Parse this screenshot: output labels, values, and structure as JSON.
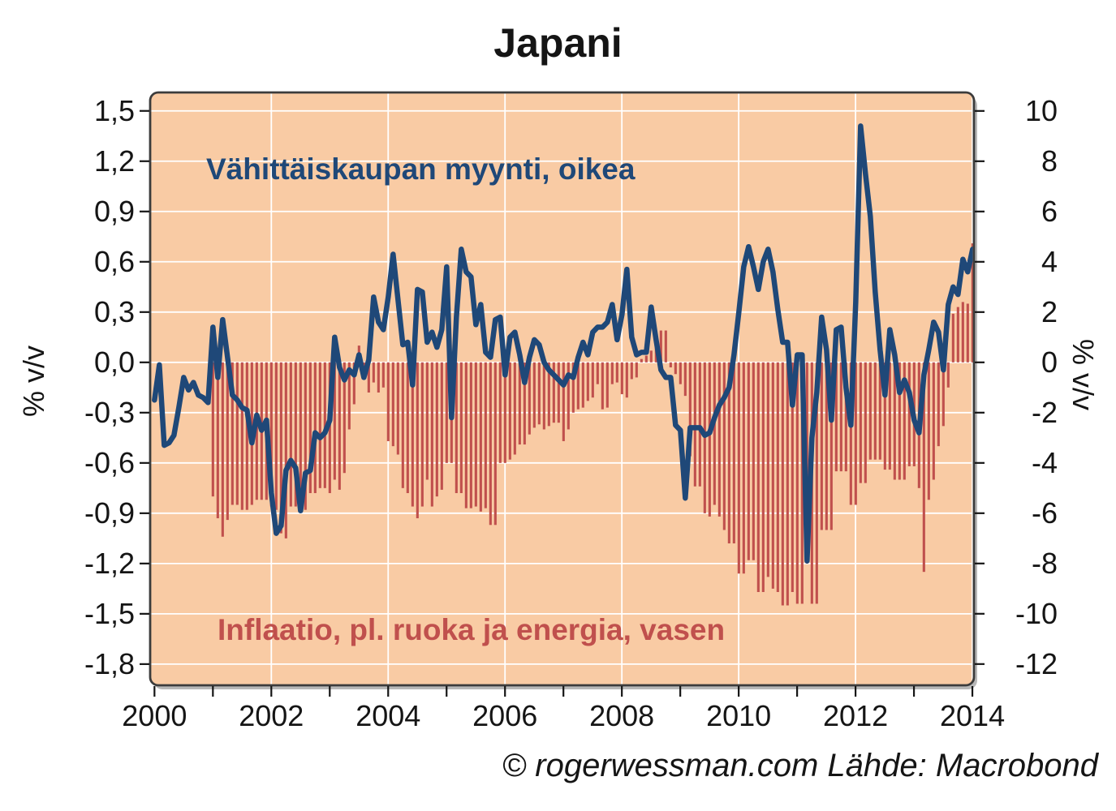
{
  "title": "Japani",
  "footer": "© rogerwessman.com Lähde: Macrobond",
  "annotations": {
    "line_label": "Vähittäiskaupan myynti, oikea",
    "bar_label": "Inflaatio, pl. ruoka ja energia, vasen"
  },
  "axes": {
    "left_unit": "% v/v",
    "right_unit": "% v/v",
    "left_ticks": [
      "1,5",
      "1,2",
      "0,9",
      "0,6",
      "0,3",
      "0,0",
      "-0,3",
      "-0,6",
      "-0,9",
      "-1,2",
      "-1,5",
      "-1,8"
    ],
    "left_tick_values": [
      1.5,
      1.2,
      0.9,
      0.6,
      0.3,
      0.0,
      -0.3,
      -0.6,
      -0.9,
      -1.2,
      -1.5,
      -1.8
    ],
    "right_ticks": [
      "10",
      "8",
      "6",
      "4",
      "2",
      "0",
      "-2",
      "-4",
      "-6",
      "-8",
      "-10",
      "-12"
    ],
    "right_tick_values": [
      10,
      8,
      6,
      4,
      2,
      0,
      -2,
      -4,
      -6,
      -8,
      -10,
      -12
    ],
    "x_ticks": [
      "2000",
      "2002",
      "2004",
      "2006",
      "2008",
      "2010",
      "2012",
      "2014"
    ],
    "x_tick_values": [
      2000,
      2002,
      2004,
      2006,
      2008,
      2010,
      2012,
      2014
    ]
  },
  "colors": {
    "plot_bg": "#F9CBA4",
    "grid": "#FFFFFF",
    "frame": "#3C3C3C",
    "shadow": "rgba(0,0,0,0.28)",
    "bar": "#C0504D",
    "line": "#1F4878",
    "text": "#151515"
  },
  "chart_data": {
    "type": "bar+line",
    "title": "Japani",
    "frequency": "monthly",
    "start_month": "2000-01",
    "end_month": "2014-01",
    "grid": true,
    "x_year_gridlines": [
      2002,
      2004,
      2006,
      2008,
      2010,
      2012,
      2014
    ],
    "left_axis": {
      "label": "% v/v",
      "ylim": [
        -1.8,
        1.5
      ]
    },
    "right_axis": {
      "label": "% v/v",
      "ylim": [
        -12,
        10
      ]
    },
    "series": [
      {
        "name": "Inflaatio, pl. ruoka ja energia, vasen",
        "type": "bar",
        "axis": "left",
        "unit": "% v/v",
        "values": [
          null,
          null,
          null,
          null,
          null,
          null,
          null,
          null,
          null,
          null,
          null,
          null,
          -0.8,
          -0.93,
          -1.04,
          -0.94,
          -0.85,
          -0.85,
          -0.88,
          -0.88,
          -0.85,
          -0.82,
          -0.82,
          -0.82,
          -0.86,
          -0.88,
          -1.02,
          -1.05,
          -0.86,
          -0.86,
          -0.88,
          -0.88,
          -0.78,
          -0.78,
          -0.75,
          -0.75,
          -0.78,
          -0.7,
          -0.76,
          -0.66,
          -0.4,
          -0.25,
          0.1,
          -0.1,
          -0.18,
          -0.12,
          -0.18,
          -0.15,
          -0.47,
          -0.5,
          -0.55,
          -0.75,
          -0.78,
          -0.86,
          -0.93,
          -0.86,
          -0.7,
          -0.86,
          -0.8,
          -0.76,
          -0.6,
          -0.6,
          -0.78,
          -0.78,
          -0.87,
          -0.87,
          -0.86,
          -0.89,
          -0.87,
          -0.97,
          -0.97,
          -0.6,
          -0.6,
          -0.58,
          -0.55,
          -0.49,
          -0.49,
          -0.43,
          -0.39,
          -0.37,
          -0.4,
          -0.38,
          -0.36,
          -0.36,
          -0.47,
          -0.4,
          -0.3,
          -0.28,
          -0.27,
          -0.23,
          -0.21,
          -0.13,
          -0.28,
          -0.27,
          -0.13,
          -0.12,
          -0.19,
          -0.21,
          -0.1,
          -0.09,
          0.02,
          0.04,
          0.07,
          0.11,
          0.19,
          0.19,
          -0.03,
          -0.07,
          -0.13,
          -0.2,
          -0.56,
          -0.74,
          -0.74,
          -0.9,
          -0.92,
          -0.85,
          -0.92,
          -1.0,
          -1.08,
          -1.08,
          -1.26,
          -1.26,
          -1.18,
          -1.18,
          -1.37,
          -1.37,
          -1.28,
          -1.35,
          -1.37,
          -1.45,
          -1.45,
          -1.37,
          -1.44,
          -1.44,
          -1.2,
          -1.44,
          -1.44,
          -1.0,
          -1.0,
          -1.0,
          -0.65,
          -0.65,
          -0.65,
          -0.85,
          -0.85,
          -0.72,
          -0.72,
          -0.58,
          -0.58,
          -0.58,
          -0.64,
          -0.64,
          -0.7,
          -0.7,
          -0.7,
          -0.62,
          -0.62,
          -0.75,
          -1.25,
          -0.82,
          -0.7,
          -0.5,
          -0.38,
          -0.15,
          0.29,
          0.33,
          0.36,
          0.35,
          0.71
        ]
      },
      {
        "name": "Vähittäiskaupan myynti, oikea",
        "type": "line",
        "axis": "right",
        "unit": "% v/v",
        "values": [
          -1.5,
          -0.1,
          -3.3,
          -3.2,
          -2.9,
          -1.8,
          -0.6,
          -1.1,
          -0.8,
          -1.3,
          -1.4,
          -1.6,
          1.4,
          -0.6,
          1.7,
          0.2,
          -1.3,
          -1.5,
          -1.8,
          -1.9,
          -3.2,
          -2.1,
          -2.7,
          -2.3,
          -5.2,
          -6.8,
          -6.5,
          -4.3,
          -3.9,
          -4.2,
          -5.9,
          -4.4,
          -4.3,
          -2.8,
          -3.0,
          -2.8,
          -2.3,
          1.0,
          -0.2,
          -0.7,
          -0.3,
          -0.5,
          0.3,
          -0.6,
          0.1,
          2.6,
          1.6,
          1.3,
          2.6,
          4.3,
          2.5,
          0.7,
          0.8,
          -0.9,
          2.9,
          2.8,
          0.8,
          1.2,
          0.6,
          1.3,
          3.8,
          -2.2,
          1.8,
          4.5,
          3.6,
          3.4,
          1.5,
          2.3,
          0.4,
          0.2,
          1.7,
          1.8,
          -0.5,
          1.0,
          1.2,
          0.3,
          -0.8,
          0.2,
          0.9,
          0.7,
          0.0,
          -0.3,
          -0.5,
          -0.7,
          -0.9,
          -0.5,
          -0.6,
          0.2,
          0.8,
          0.3,
          1.2,
          1.4,
          1.4,
          1.6,
          2.3,
          0.9,
          1.9,
          3.7,
          1.0,
          0.3,
          0.4,
          0.4,
          2.2,
          0.9,
          -0.3,
          -0.6,
          -0.6,
          -2.5,
          -2.7,
          -5.4,
          -2.6,
          -2.6,
          -2.6,
          -2.9,
          -2.8,
          -2.2,
          -1.7,
          -1.4,
          -1.0,
          0.3,
          2.0,
          3.8,
          4.6,
          3.8,
          2.9,
          4.0,
          4.5,
          3.6,
          2.1,
          0.8,
          0.8,
          -1.7,
          0.3,
          0.3,
          -7.9,
          -3.0,
          -1.2,
          1.8,
          0.5,
          -2.3,
          1.3,
          1.4,
          -1.0,
          -2.5,
          2.4,
          9.4,
          7.5,
          5.8,
          2.8,
          0.5,
          -1.3,
          1.3,
          0.3,
          -1.2,
          -0.7,
          -1.2,
          -2.3,
          -2.8,
          -0.5,
          0.5,
          1.6,
          1.2,
          -0.3,
          2.3,
          3.0,
          2.7,
          4.1,
          3.6,
          4.5
        ]
      }
    ]
  }
}
